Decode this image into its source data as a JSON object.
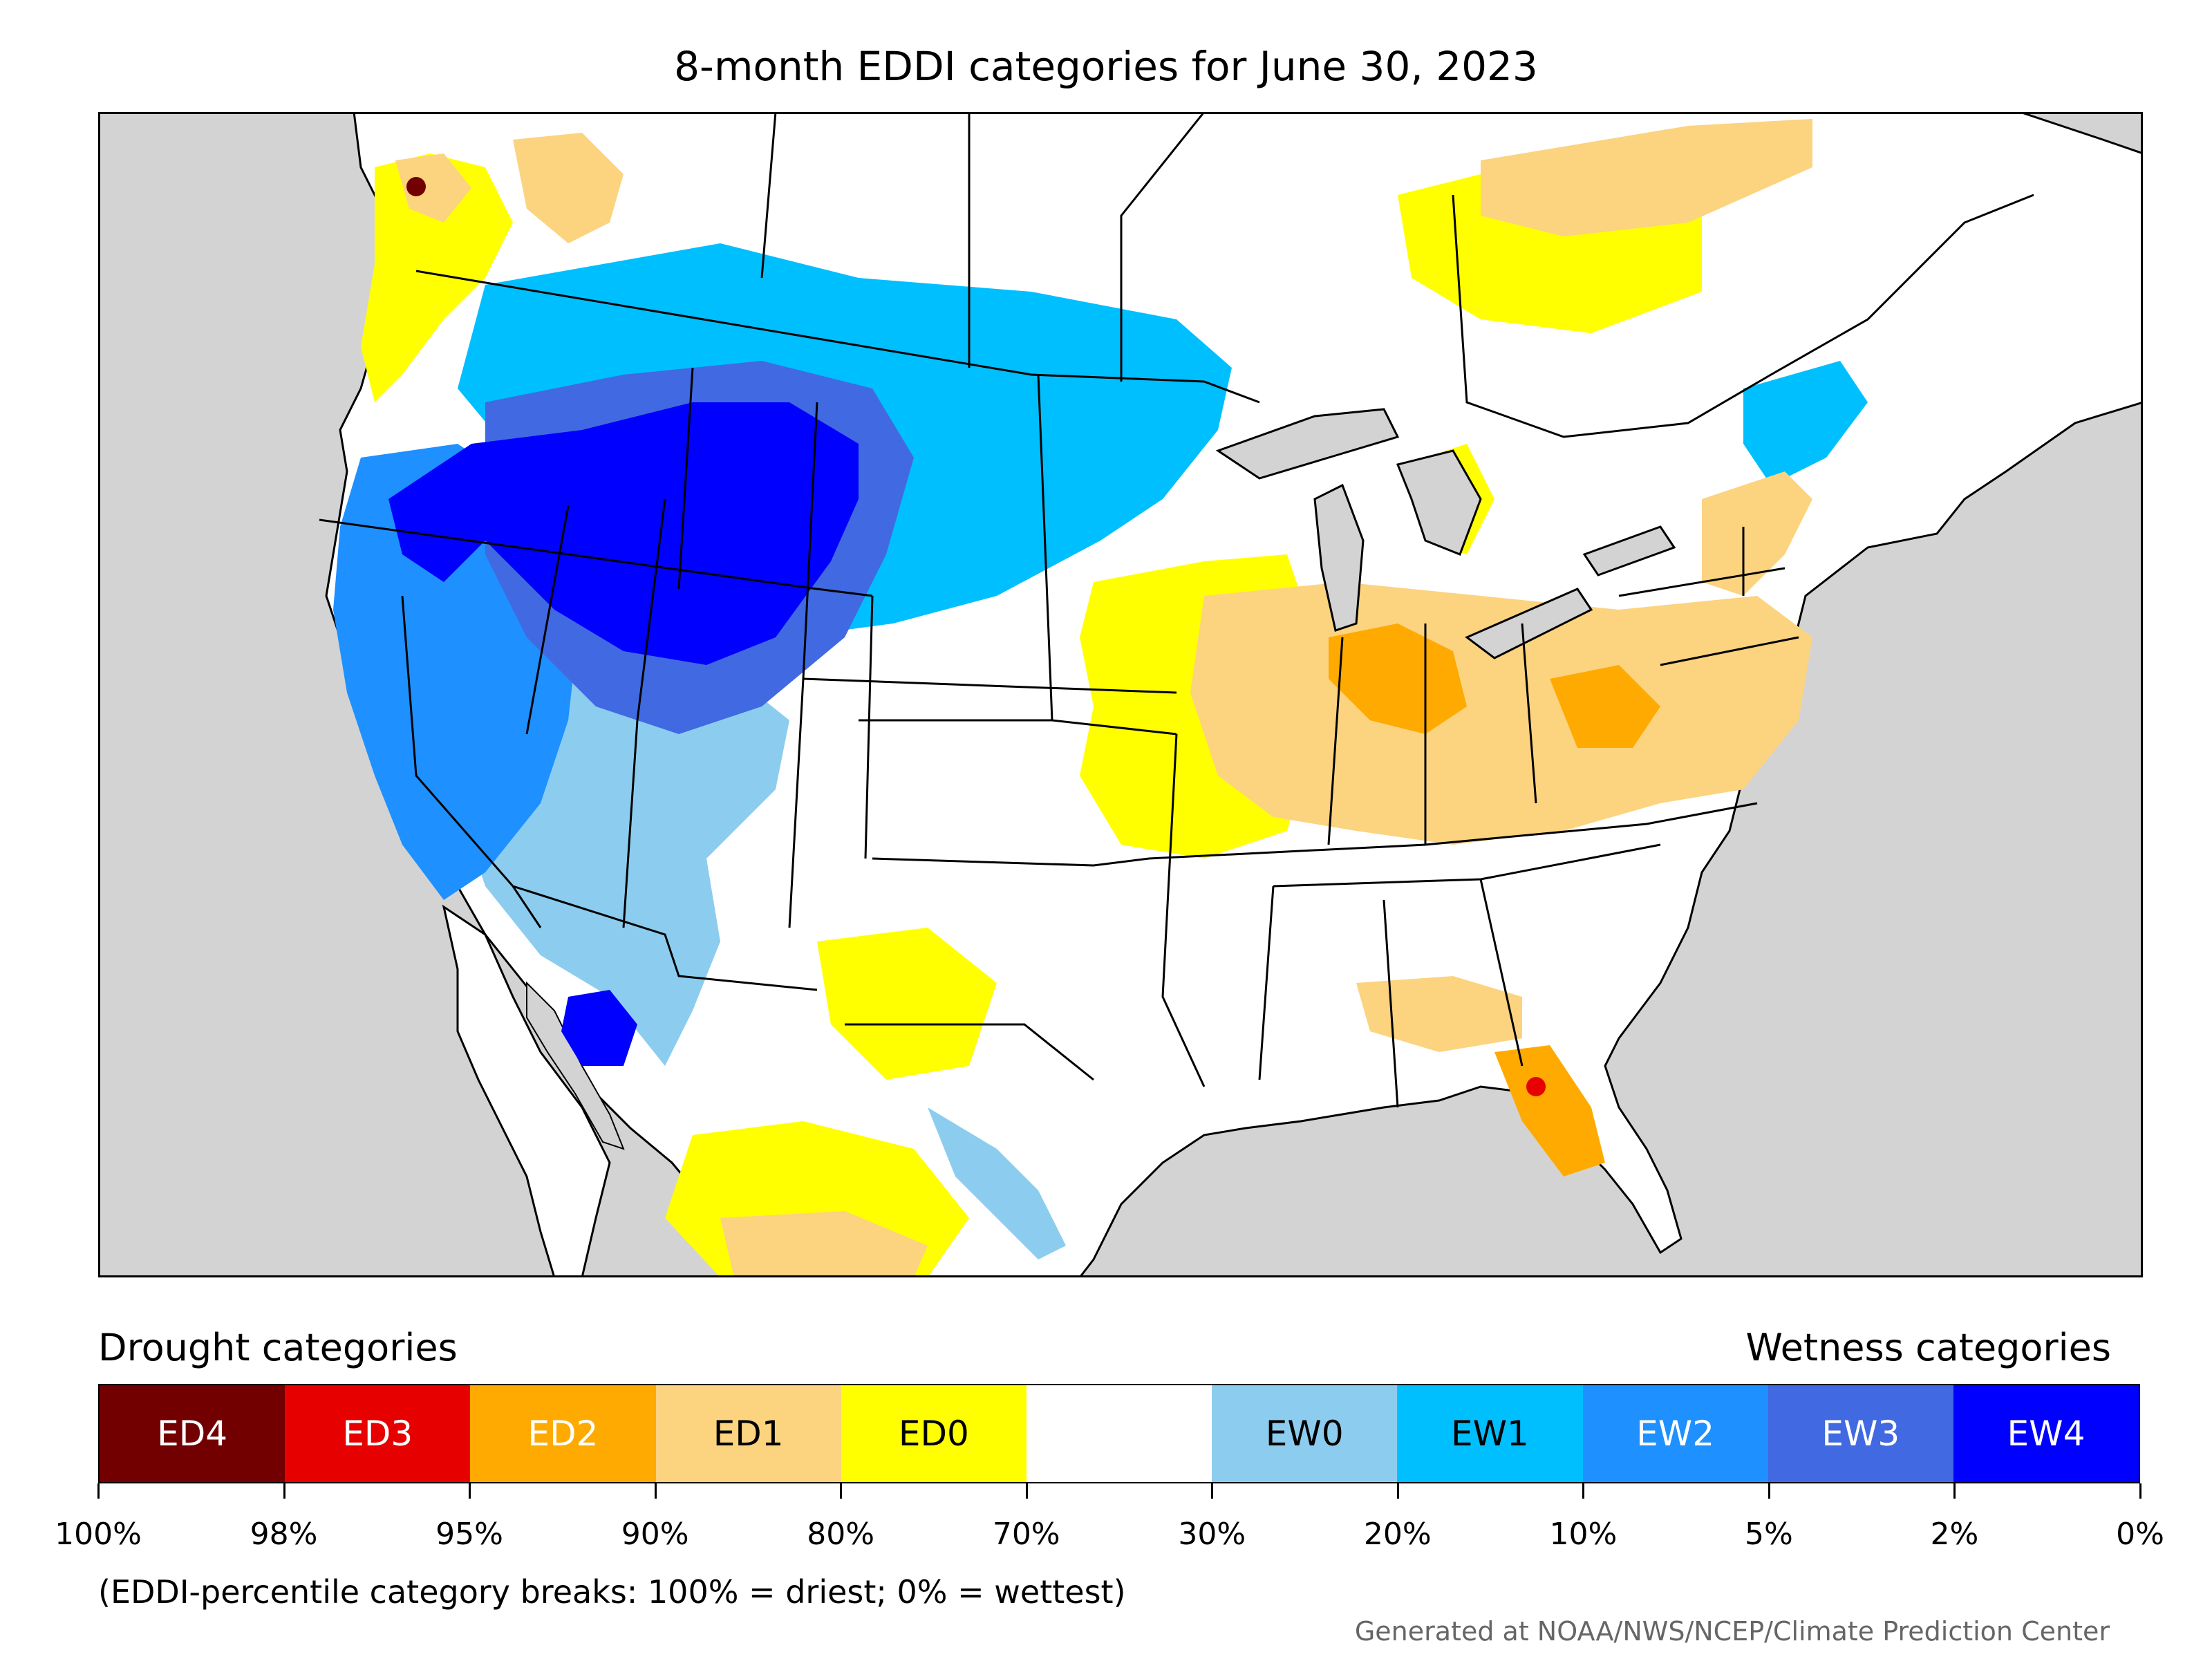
{
  "title": "8-month EDDI categories for June 30, 2023",
  "legend": {
    "drought_heading": "Drought categories",
    "wetness_heading": "Wetness categories",
    "categories": [
      {
        "label": "ED4",
        "color": "#730000",
        "text_color": "#ffffff"
      },
      {
        "label": "ED3",
        "color": "#e60000",
        "text_color": "#ffffff"
      },
      {
        "label": "ED2",
        "color": "#ffaa00",
        "text_color": "#ffffff"
      },
      {
        "label": "ED1",
        "color": "#fcd37f",
        "text_color": "#000000"
      },
      {
        "label": "ED0",
        "color": "#ffff00",
        "text_color": "#000000"
      },
      {
        "label": "",
        "color": "#ffffff",
        "text_color": "#000000"
      },
      {
        "label": "EW0",
        "color": "#8ccdef",
        "text_color": "#000000"
      },
      {
        "label": "EW1",
        "color": "#00bfff",
        "text_color": "#000000"
      },
      {
        "label": "EW2",
        "color": "#1e90ff",
        "text_color": "#ffffff"
      },
      {
        "label": "EW3",
        "color": "#4169e1",
        "text_color": "#ffffff"
      },
      {
        "label": "EW4",
        "color": "#0000ff",
        "text_color": "#ffffff"
      }
    ],
    "tick_labels": [
      "100%",
      "98%",
      "95%",
      "90%",
      "80%",
      "70%",
      "30%",
      "20%",
      "10%",
      "5%",
      "2%",
      "0%"
    ]
  },
  "note": "(EDDI-percentile category breaks: 100% = driest; 0% = wettest)",
  "credit": "Generated at NOAA/NWS/NCEP/Climate Prediction Center",
  "map_colors": {
    "ocean": "#d3d3d3",
    "land": "#ffffff",
    "border": "#000000"
  },
  "map_regions": [
    {
      "name": "pacific-northwest-dry",
      "category": "ED0"
    },
    {
      "name": "northwest-bc-dry",
      "category": "ED1"
    },
    {
      "name": "bc-hotspot",
      "category": "ED4"
    },
    {
      "name": "great-basin-wet",
      "category": "EW4"
    },
    {
      "name": "rockies-wet",
      "category": "EW3"
    },
    {
      "name": "california-wet",
      "category": "EW2"
    },
    {
      "name": "northern-plains-wet",
      "category": "EW1"
    },
    {
      "name": "southwest-wet",
      "category": "EW0"
    },
    {
      "name": "midwest-dry",
      "category": "ED1"
    },
    {
      "name": "midwest-core-dry",
      "category": "ED2"
    },
    {
      "name": "plains-fringe-dry",
      "category": "ED0"
    },
    {
      "name": "northeast-dry",
      "category": "ED1"
    },
    {
      "name": "quebec-dry",
      "category": "ED1"
    },
    {
      "name": "ontario-dry",
      "category": "ED0"
    },
    {
      "name": "texas-dry",
      "category": "ED0"
    },
    {
      "name": "mexico-dry",
      "category": "ED0"
    },
    {
      "name": "gulf-coast-dry",
      "category": "ED1"
    },
    {
      "name": "florida-dry",
      "category": "ED2"
    },
    {
      "name": "florida-hotspot",
      "category": "ED3"
    },
    {
      "name": "maritimes-wet",
      "category": "EW1"
    }
  ]
}
